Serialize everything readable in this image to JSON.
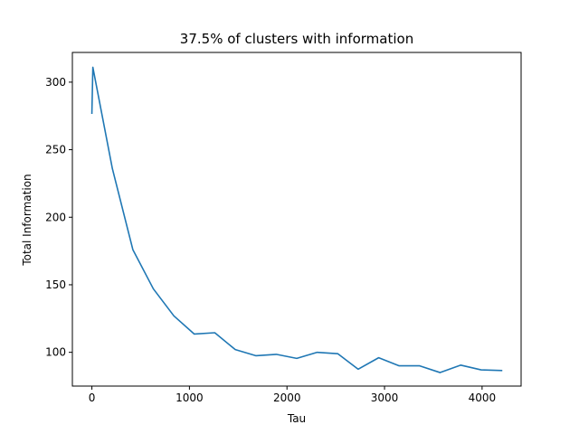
{
  "chart_data": {
    "type": "line",
    "title": "37.5% of clusters with information",
    "xlabel": "Tau",
    "ylabel": "Total Information",
    "xlim": [
      -200,
      4400
    ],
    "ylim": [
      75,
      322
    ],
    "xticks": [
      0,
      1000,
      2000,
      3000,
      4000
    ],
    "yticks": [
      100,
      150,
      200,
      250,
      300
    ],
    "grid": false,
    "series": [
      {
        "color": "#1f77b4",
        "x": [
          0,
          10,
          210,
          420,
          630,
          840,
          1050,
          1260,
          1470,
          1680,
          1890,
          2100,
          2310,
          2520,
          2730,
          2940,
          3150,
          3360,
          3570,
          3780,
          3990,
          4200
        ],
        "y": [
          277,
          311,
          236,
          176,
          147,
          127,
          113.5,
          114.5,
          102,
          97.5,
          98.5,
          95.5,
          100,
          99,
          87.5,
          96,
          90,
          90,
          85,
          90.5,
          87,
          86.5
        ]
      }
    ]
  }
}
